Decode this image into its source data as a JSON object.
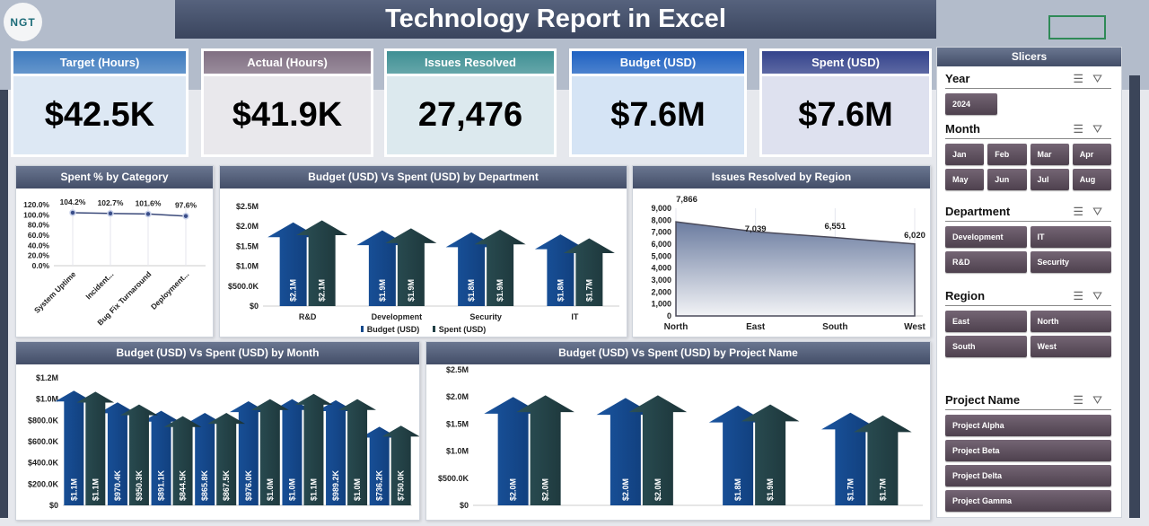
{
  "logo": {
    "text": "NGT"
  },
  "title": "Technology Report in Excel",
  "kpis": [
    {
      "label": "Target (Hours)",
      "value": "$42.5K",
      "header_color": "#3e7bbf",
      "body_color": "#dde8f4"
    },
    {
      "label": "Actual (Hours)",
      "value": "$41.9K",
      "header_color": "#806f82",
      "body_color": "#e9e8ec"
    },
    {
      "label": "Issues Resolved",
      "value": "27,476",
      "header_color": "#3f9094",
      "body_color": "#dce9ee"
    },
    {
      "label": "Budget (USD)",
      "value": "$7.6M",
      "header_color": "#1f62c2",
      "body_color": "#d5e4f5"
    },
    {
      "label": "Spent (USD)",
      "value": "$7.6M",
      "header_color": "#34438c",
      "body_color": "#dee1ef"
    }
  ],
  "colors": {
    "budget": "#154a8c",
    "spent": "#213f44",
    "line": "#3b4a7a"
  },
  "chart_data": [
    {
      "id": "spent-pct",
      "type": "line",
      "title": "Spent % by  Category",
      "categories": [
        "System Uptime",
        "Incident...",
        "Bug Fix Turnaround",
        "Deployment..."
      ],
      "values": [
        104.2,
        102.7,
        101.6,
        97.6
      ],
      "labels": [
        "104.2%",
        "102.7%",
        "101.6%",
        "97.6%"
      ],
      "ylim": [
        0,
        120
      ],
      "yticks": [
        "0.0%",
        "20.0%",
        "40.0%",
        "60.0%",
        "80.0%",
        "100.0%",
        "120.0%"
      ],
      "grid": "vertical"
    },
    {
      "id": "dept",
      "type": "bar",
      "title": "Budget (USD) Vs Spent (USD) by Department",
      "categories": [
        "R&D",
        "Development",
        "Security",
        "IT"
      ],
      "series": [
        {
          "name": "Budget (USD)",
          "values": [
            2.1,
            1.9,
            1.85,
            1.8
          ],
          "labels": [
            "$2.1M",
            "$1.9M",
            "$1.8M",
            "$1.8M"
          ]
        },
        {
          "name": "Spent (USD)",
          "values": [
            2.15,
            1.95,
            1.92,
            1.7
          ],
          "labels": [
            "$2.1M",
            "$1.9M",
            "$1.9M",
            "$1.7M"
          ]
        }
      ],
      "ylim": [
        0,
        2.5
      ],
      "yticks": [
        "$0",
        "$500.0K",
        "$1.0M",
        "$1.5M",
        "$2.0M",
        "$2.5M"
      ],
      "legend": "bottom"
    },
    {
      "id": "region",
      "type": "area",
      "title": "Issues Resolved by Region",
      "categories": [
        "North",
        "East",
        "South",
        "West"
      ],
      "values": [
        7866,
        7039,
        6551,
        6020
      ],
      "labels": [
        "7,866",
        "7,039",
        "6,551",
        "6,020"
      ],
      "ylim": [
        0,
        9000
      ],
      "yticks": [
        "0",
        "1,000",
        "2,000",
        "3,000",
        "4,000",
        "5,000",
        "6,000",
        "7,000",
        "8,000",
        "9,000"
      ],
      "grid": "vertical"
    },
    {
      "id": "month",
      "type": "bar",
      "title": "Budget (USD) Vs Spent (USD) by Month",
      "series": [
        {
          "name": "Budget (USD)",
          "values": [
            1.08,
            0.97,
            0.89,
            0.87,
            0.98,
            1.0,
            0.99,
            0.74
          ],
          "labels": [
            "$1.1M",
            "$970.4K",
            "$891.1K",
            "$865.8K",
            "$976.0K",
            "$1.0M",
            "$989.2K",
            "$736.2K"
          ]
        },
        {
          "name": "Spent (USD)",
          "values": [
            1.07,
            0.95,
            0.84,
            0.87,
            1.0,
            1.05,
            1.0,
            0.75
          ],
          "labels": [
            "$1.1M",
            "$950.3K",
            "$844.5K",
            "$867.5K",
            "$1.0M",
            "$1.1M",
            "$1.0M",
            "$750.0K"
          ]
        }
      ],
      "ylim": [
        0,
        1.2
      ],
      "yticks": [
        "$0",
        "$200.0K",
        "$400.0K",
        "$600.0K",
        "$800.0K",
        "$1.0M",
        "$1.2M"
      ]
    },
    {
      "id": "project",
      "type": "bar",
      "title": "Budget (USD) Vs Spent (USD) by Project Name",
      "series": [
        {
          "name": "Budget (USD)",
          "values": [
            2.0,
            1.98,
            1.84,
            1.71
          ],
          "labels": [
            "$2.0M",
            "$2.0M",
            "$1.8M",
            "$1.7M"
          ]
        },
        {
          "name": "Spent (USD)",
          "values": [
            2.03,
            2.03,
            1.86,
            1.66
          ],
          "labels": [
            "$2.0M",
            "$2.0M",
            "$1.9M",
            "$1.7M"
          ]
        }
      ],
      "ylim": [
        0,
        2.5
      ],
      "yticks": [
        "$0",
        "$500.0K",
        "$1.0M",
        "$1.5M",
        "$2.0M",
        "$2.5M"
      ]
    }
  ],
  "slicers": {
    "title": "Slicers",
    "groups": [
      {
        "title": "Year",
        "items": [
          "2024"
        ]
      },
      {
        "title": "Month",
        "items": [
          "Jan",
          "Feb",
          "Mar",
          "Apr",
          "May",
          "Jun",
          "Jul",
          "Aug"
        ]
      },
      {
        "title": "Department",
        "items": [
          "Development",
          "IT",
          "R&D",
          "Security"
        ]
      },
      {
        "title": "Region",
        "items": [
          "East",
          "North",
          "South",
          "West"
        ]
      },
      {
        "title": "Project Name",
        "items": [
          "Project Alpha",
          "Project Beta",
          "Project Delta",
          "Project Gamma"
        ]
      }
    ],
    "icons": [
      "multi-select-icon",
      "clear-filter-icon"
    ]
  }
}
